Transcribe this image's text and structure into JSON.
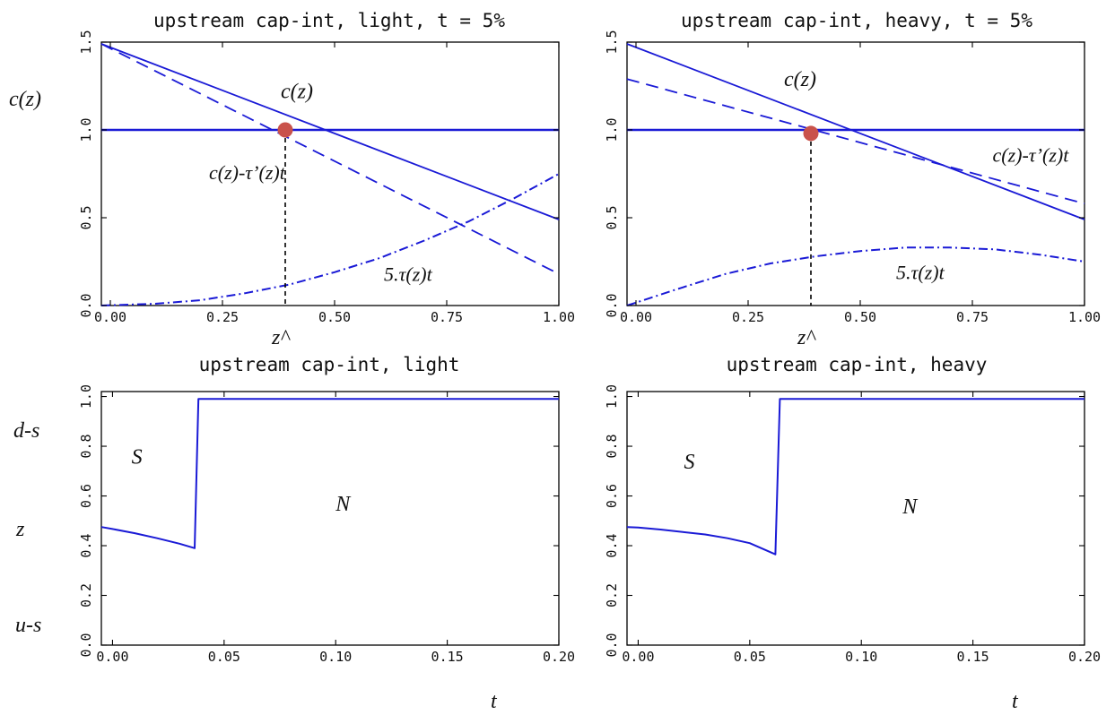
{
  "figure": {
    "side_labels": {
      "cz": "c(z)",
      "ds": "d-s",
      "z": "z",
      "us": "u-s",
      "t_left": "t",
      "t_right": "t"
    }
  },
  "chart_data": [
    {
      "id": "tl",
      "type": "line",
      "title": "upstream cap-int, light, t = 5%",
      "xlim": [
        -0.02,
        1.0
      ],
      "ylim": [
        0.0,
        1.5
      ],
      "xticks": [
        0.0,
        0.25,
        0.5,
        0.75,
        1.0
      ],
      "xtick_labels": [
        "0.00",
        "0.25",
        "0.50",
        "0.75",
        "1.00"
      ],
      "yticks": [
        0.0,
        0.5,
        1.0,
        1.5
      ],
      "ytick_labels": [
        "0.0",
        "0.5",
        "1.0",
        "1.5"
      ],
      "grid": false,
      "series": [
        {
          "style": "solid",
          "width": 2.6,
          "x": [
            -0.02,
            1.0
          ],
          "y": [
            1.0,
            1.0
          ]
        },
        {
          "style": "solid",
          "width": 1.8,
          "x": [
            -0.02,
            1.0
          ],
          "y": [
            1.49,
            0.49
          ]
        },
        {
          "style": "dashed",
          "width": 1.8,
          "x": [
            -0.02,
            1.0
          ],
          "y": [
            1.49,
            0.18
          ]
        },
        {
          "style": "dashdot",
          "width": 2.0,
          "x": [
            -0.02,
            0.1,
            0.2,
            0.3,
            0.4,
            0.5,
            0.6,
            0.7,
            0.8,
            0.9,
            1.0
          ],
          "y": [
            0.0,
            0.01,
            0.03,
            0.07,
            0.12,
            0.19,
            0.27,
            0.37,
            0.48,
            0.61,
            0.75
          ]
        }
      ],
      "marker": {
        "x": 0.39,
        "y": 1.0
      },
      "vline": {
        "x": 0.39,
        "y_from": 1.0,
        "y_to": 0.0
      },
      "annotations": [
        {
          "text": "c(z)",
          "x": 0.38,
          "y": 1.18
        },
        {
          "text": "c(z)-τ’(z)t",
          "x": 0.22,
          "y": 0.72
        },
        {
          "text": "5.τ(z)t",
          "x": 0.61,
          "y": 0.14
        },
        {
          "text": "z^",
          "x": 0.36,
          "y": -0.22
        }
      ]
    },
    {
      "id": "tr",
      "type": "line",
      "title": "upstream cap-int, heavy, t = 5%",
      "xlim": [
        -0.02,
        1.0
      ],
      "ylim": [
        0.0,
        1.5
      ],
      "xticks": [
        0.0,
        0.25,
        0.5,
        0.75,
        1.0
      ],
      "xtick_labels": [
        "0.00",
        "0.25",
        "0.50",
        "0.75",
        "1.00"
      ],
      "yticks": [
        0.0,
        0.5,
        1.0,
        1.5
      ],
      "ytick_labels": [
        "0.0",
        "0.5",
        "1.0",
        "1.5"
      ],
      "grid": false,
      "series": [
        {
          "style": "solid",
          "width": 2.6,
          "x": [
            -0.02,
            1.0
          ],
          "y": [
            1.0,
            1.0
          ]
        },
        {
          "style": "solid",
          "width": 1.8,
          "x": [
            -0.02,
            1.0
          ],
          "y": [
            1.49,
            0.49
          ]
        },
        {
          "style": "dashed",
          "width": 1.8,
          "x": [
            -0.02,
            1.0
          ],
          "y": [
            1.29,
            0.58
          ]
        },
        {
          "style": "dashdot",
          "width": 2.0,
          "x": [
            -0.02,
            0.1,
            0.2,
            0.3,
            0.4,
            0.5,
            0.6,
            0.7,
            0.8,
            0.9,
            1.0
          ],
          "y": [
            0.0,
            0.1,
            0.18,
            0.24,
            0.28,
            0.31,
            0.33,
            0.33,
            0.32,
            0.29,
            0.25
          ]
        }
      ],
      "marker": {
        "x": 0.39,
        "y": 0.98
      },
      "vline": {
        "x": 0.39,
        "y_from": 0.98,
        "y_to": 0.0
      },
      "annotations": [
        {
          "text": "c(z)",
          "x": 0.33,
          "y": 1.25
        },
        {
          "text": "c(z)-τ’(z)t",
          "x": 0.795,
          "y": 0.82
        },
        {
          "text": "5.τ(z)t",
          "x": 0.58,
          "y": 0.15
        },
        {
          "text": "z^",
          "x": 0.36,
          "y": -0.22
        }
      ]
    },
    {
      "id": "bl",
      "type": "line",
      "title": "upstream cap-int, light",
      "xlim": [
        -0.005,
        0.2
      ],
      "ylim": [
        0.0,
        1.02
      ],
      "xticks": [
        0.0,
        0.05,
        0.1,
        0.15,
        0.2
      ],
      "xtick_labels": [
        "0.00",
        "0.05",
        "0.10",
        "0.15",
        "0.20"
      ],
      "yticks": [
        0.0,
        0.2,
        0.4,
        0.6,
        0.8,
        1.0
      ],
      "ytick_labels": [
        "0.0",
        "0.2",
        "0.4",
        "0.6",
        "0.8",
        "1.0"
      ],
      "grid": false,
      "series": [
        {
          "style": "solid",
          "width": 2.0,
          "x": [
            -0.005,
            0.0,
            0.01,
            0.02,
            0.03,
            0.0368,
            0.0385,
            0.2
          ],
          "y": [
            0.475,
            0.467,
            0.45,
            0.43,
            0.408,
            0.39,
            0.99,
            0.99
          ]
        }
      ],
      "annotations": [
        {
          "text": "S",
          "x": 0.0085,
          "y": 0.73
        },
        {
          "text": "N",
          "x": 0.1,
          "y": 0.54
        }
      ]
    },
    {
      "id": "br",
      "type": "line",
      "title": "upstream cap-int, heavy",
      "xlim": [
        -0.005,
        0.2
      ],
      "ylim": [
        0.0,
        1.02
      ],
      "xticks": [
        0.0,
        0.05,
        0.1,
        0.15,
        0.2
      ],
      "xtick_labels": [
        "0.00",
        "0.05",
        "0.10",
        "0.15",
        "0.20"
      ],
      "yticks": [
        0.0,
        0.2,
        0.4,
        0.6,
        0.8,
        1.0
      ],
      "ytick_labels": [
        "0.0",
        "0.2",
        "0.4",
        "0.6",
        "0.8",
        "1.0"
      ],
      "grid": false,
      "series": [
        {
          "style": "solid",
          "width": 2.0,
          "x": [
            -0.005,
            0.0,
            0.01,
            0.02,
            0.03,
            0.04,
            0.05,
            0.0615,
            0.0635,
            0.2
          ],
          "y": [
            0.475,
            0.473,
            0.465,
            0.455,
            0.445,
            0.43,
            0.41,
            0.365,
            0.99,
            0.99
          ]
        }
      ],
      "annotations": [
        {
          "text": "S",
          "x": 0.0205,
          "y": 0.71
        },
        {
          "text": "N",
          "x": 0.1185,
          "y": 0.53
        }
      ]
    }
  ],
  "style": {
    "line_color": "#1a1ad6",
    "marker_color": "#c9524b"
  }
}
